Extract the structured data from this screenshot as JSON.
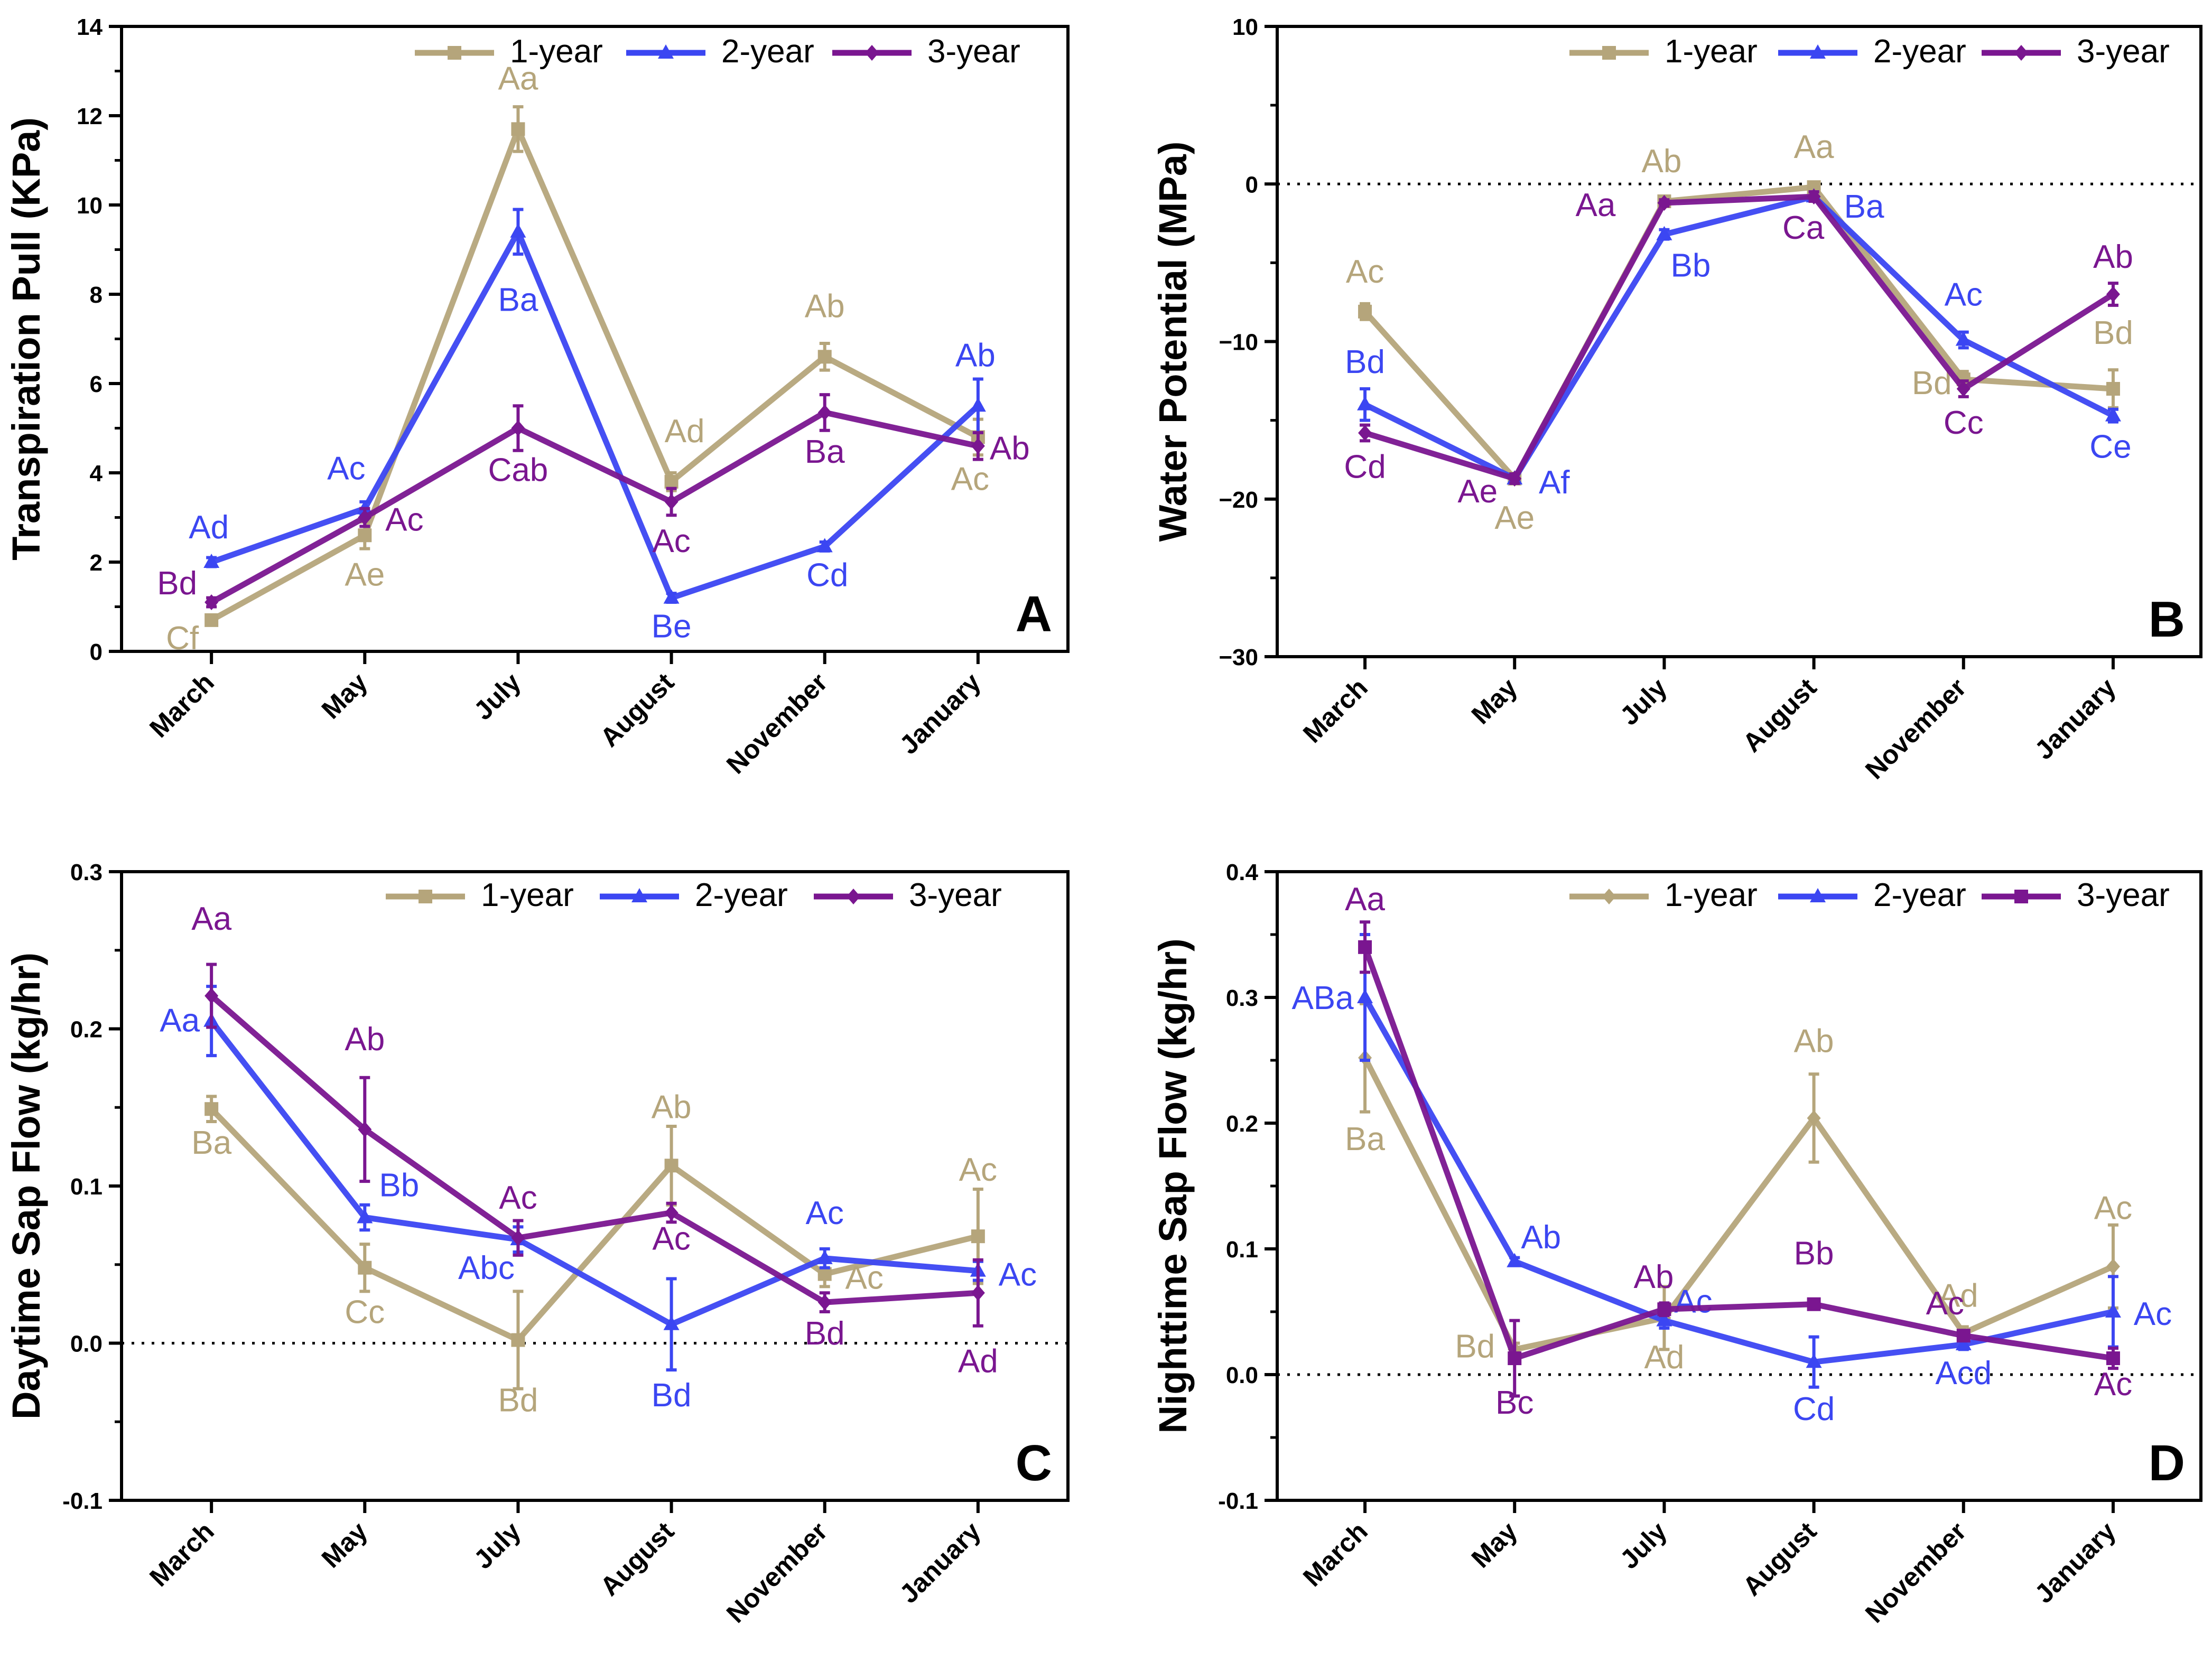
{
  "colors": {
    "1-year": "#B5A57B",
    "2-year": "#3B46F2",
    "3-year": "#7A1690"
  },
  "months": [
    "March",
    "May",
    "July",
    "August",
    "November",
    "January"
  ],
  "chart_data": [
    {
      "type": "line",
      "panel": "A",
      "ylabel": "Transpiration Pull (KPa)",
      "ylim": [
        0,
        14
      ],
      "yticks": [
        "0",
        "2",
        "4",
        "6",
        "8",
        "10",
        "12",
        "14"
      ],
      "ytick_values": [
        0,
        2,
        4,
        6,
        8,
        10,
        12,
        14
      ],
      "categories": [
        "March",
        "May",
        "July",
        "August",
        "November",
        "January"
      ],
      "zero_line": false,
      "legend_entries": [
        "1-year",
        "2-year",
        "3-year"
      ],
      "series": [
        {
          "name": "1-year",
          "marker": "square",
          "values": [
            0.7,
            2.6,
            11.7,
            3.8,
            6.6,
            4.8
          ],
          "errors": [
            0.1,
            0.3,
            0.5,
            0.2,
            0.3,
            0.4
          ],
          "labels": [
            "Cf",
            "Ae",
            "Aa",
            "Ad",
            "Ab",
            "Ac"
          ]
        },
        {
          "name": "2-year",
          "marker": "triangle",
          "values": [
            2.0,
            3.2,
            9.4,
            1.2,
            2.35,
            5.5
          ],
          "errors": [
            0.1,
            0.15,
            0.5,
            0.1,
            0.1,
            0.6
          ],
          "labels": [
            "Ad",
            "Ac",
            "Ba",
            "Be",
            "Cd",
            "Ab"
          ]
        },
        {
          "name": "3-year",
          "marker": "diamond",
          "values": [
            1.1,
            3.0,
            5.0,
            3.35,
            5.35,
            4.6
          ],
          "errors": [
            0.1,
            0.2,
            0.5,
            0.3,
            0.4,
            0.3
          ],
          "labels": [
            "Bd",
            "Ac",
            "Cab",
            "Ac",
            "Ba",
            "Ab"
          ]
        }
      ]
    },
    {
      "type": "line",
      "panel": "B",
      "ylabel": "Water Potential (MPa)",
      "ylim": [
        -30,
        10
      ],
      "yticks": [
        "−30",
        "−20",
        "−10",
        "0",
        "10"
      ],
      "ytick_values": [
        -30,
        -20,
        -10,
        0,
        10
      ],
      "categories": [
        "March",
        "May",
        "July",
        "August",
        "November",
        "January"
      ],
      "zero_line": true,
      "legend_entries": [
        "1-year",
        "2-year",
        "3-year"
      ],
      "series": [
        {
          "name": "1-year",
          "marker": "square",
          "values": [
            -8.1,
            -18.7,
            -1.1,
            -0.2,
            -12.4,
            -13.0
          ],
          "errors": [
            0.5,
            0.3,
            0.3,
            0.2,
            0.5,
            1.2
          ],
          "labels": [
            "Ac",
            "Ae",
            "Ab",
            "Aa",
            "Bd",
            "Bd"
          ]
        },
        {
          "name": "2-year",
          "marker": "triangle",
          "values": [
            -14.0,
            -18.7,
            -3.2,
            -0.8,
            -9.9,
            -14.7
          ],
          "errors": [
            1.0,
            0.3,
            0.3,
            0.3,
            0.5,
            0.4
          ],
          "labels": [
            "Bd",
            "Af",
            "Bb",
            "Ba",
            "Ac",
            "Ce"
          ]
        },
        {
          "name": "3-year",
          "marker": "diamond",
          "values": [
            -15.8,
            -18.7,
            -1.2,
            -0.8,
            -13.0,
            -7.0
          ],
          "errors": [
            0.5,
            0.3,
            0.2,
            0.3,
            0.5,
            0.7
          ],
          "labels": [
            "Cd",
            "Ae",
            "Aa",
            "Ca",
            "Cc",
            "Ab"
          ]
        }
      ]
    },
    {
      "type": "line",
      "panel": "C",
      "ylabel": "Daytime Sap Flow (kg/hr)",
      "ylim": [
        -0.1,
        0.3
      ],
      "yticks": [
        "-0.1",
        "0.0",
        "0.1",
        "0.2",
        "0.3"
      ],
      "ytick_values": [
        -0.1,
        0.0,
        0.1,
        0.2,
        0.3
      ],
      "categories": [
        "March",
        "May",
        "July",
        "August",
        "November",
        "January"
      ],
      "zero_line": true,
      "legend_entries": [
        "1-year",
        "2-year",
        "3-year"
      ],
      "series": [
        {
          "name": "1-year",
          "marker": "square",
          "values": [
            0.149,
            0.048,
            0.002,
            0.113,
            0.044,
            0.068
          ],
          "errors": [
            0.008,
            0.015,
            0.031,
            0.025,
            0.008,
            0.03
          ],
          "labels": [
            "Ba",
            "Cc",
            "Bd",
            "Ab",
            "Ac",
            "Ac"
          ]
        },
        {
          "name": "2-year",
          "marker": "triangle",
          "values": [
            0.205,
            0.08,
            0.066,
            0.012,
            0.054,
            0.046
          ],
          "errors": [
            0.022,
            0.008,
            0.008,
            0.029,
            0.006,
            0.006
          ],
          "labels": [
            "Aa",
            "Bb",
            "Abc",
            "Bd",
            "Ac",
            "Ac"
          ]
        },
        {
          "name": "3-year",
          "marker": "diamond",
          "values": [
            0.221,
            0.136,
            0.067,
            0.083,
            0.026,
            0.032
          ],
          "errors": [
            0.02,
            0.033,
            0.011,
            0.006,
            0.006,
            0.021
          ],
          "labels": [
            "Aa",
            "Ab",
            "Ac",
            "Ac",
            "Bd",
            "Ad"
          ]
        }
      ]
    },
    {
      "type": "line",
      "panel": "D",
      "ylabel": "Nighttime Sap Flow (kg/hr)",
      "ylim": [
        -0.1,
        0.4
      ],
      "yticks": [
        "-0.1",
        "0.0",
        "0.1",
        "0.2",
        "0.3",
        "0.4"
      ],
      "ytick_values": [
        -0.1,
        0.0,
        0.1,
        0.2,
        0.3,
        0.4
      ],
      "categories": [
        "March",
        "May",
        "July",
        "August",
        "November",
        "January"
      ],
      "zero_line": true,
      "legend_entries": [
        "1-year",
        "2-year",
        "3-year"
      ],
      "series": [
        {
          "name": "1-year",
          "marker": "diamond",
          "values": [
            0.252,
            0.02,
            0.045,
            0.204,
            0.033,
            0.086
          ],
          "errors": [
            0.043,
            0.005,
            0.025,
            0.035,
            0.005,
            0.033
          ],
          "labels": [
            "Ba",
            "Bd",
            "Ad",
            "Ab",
            "Ad",
            "Ac"
          ]
        },
        {
          "name": "2-year",
          "marker": "triangle",
          "values": [
            0.3,
            0.09,
            0.043,
            0.01,
            0.024,
            0.05
          ],
          "errors": [
            0.05,
            0.003,
            0.006,
            0.02,
            0.004,
            0.028
          ],
          "labels": [
            "ABa",
            "Ab",
            "Ac",
            "Cd",
            "Acd",
            "Ac"
          ]
        },
        {
          "name": "3-year",
          "marker": "square",
          "values": [
            0.34,
            0.013,
            0.052,
            0.056,
            0.031,
            0.013
          ],
          "errors": [
            0.02,
            0.03,
            0.005,
            0.004,
            0.004,
            0.008
          ],
          "labels": [
            "Aa",
            "Bc",
            "Ab",
            "Bb",
            "Ac",
            "Ac"
          ]
        }
      ]
    }
  ]
}
